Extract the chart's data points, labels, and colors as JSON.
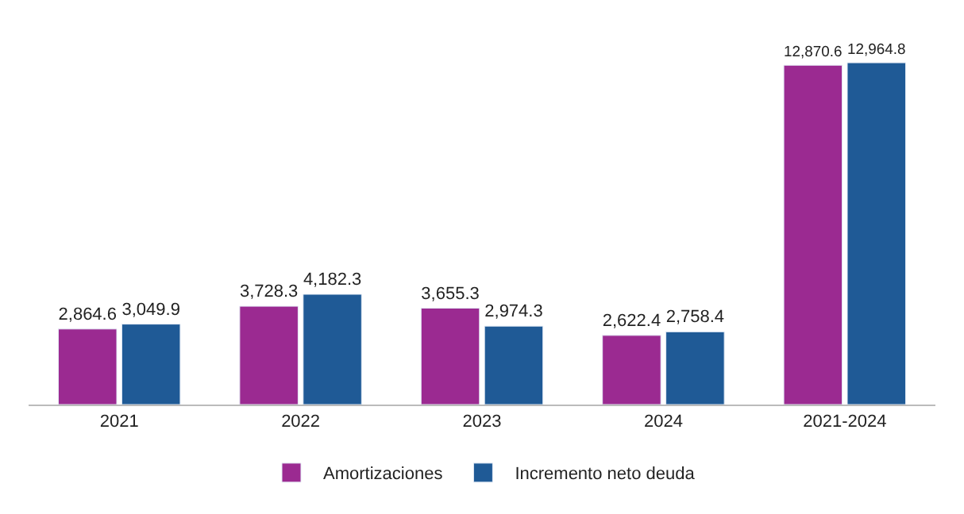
{
  "chart_data": {
    "type": "bar",
    "categories": [
      "2021",
      "2022",
      "2023",
      "2024",
      "2021-2024"
    ],
    "series": [
      {
        "name": "Amortizaciones",
        "color": "#9b2a91",
        "values": [
          2864.6,
          3728.3,
          3655.3,
          2622.4,
          12870.6
        ],
        "value_labels": [
          "2,864.6",
          "3,728.3",
          "3,655.3",
          "2,622.4",
          "12,870.6"
        ]
      },
      {
        "name": "Incremento neto deuda",
        "color": "#1f5a96",
        "values": [
          3049.9,
          4182.3,
          2974.3,
          2758.4,
          12964.8
        ],
        "value_labels": [
          "3,049.9",
          "4,182.3",
          "2,974.3",
          "2,758.4",
          "12,964.8"
        ]
      }
    ],
    "legend": "bottom",
    "tick_labels": "x"
  }
}
